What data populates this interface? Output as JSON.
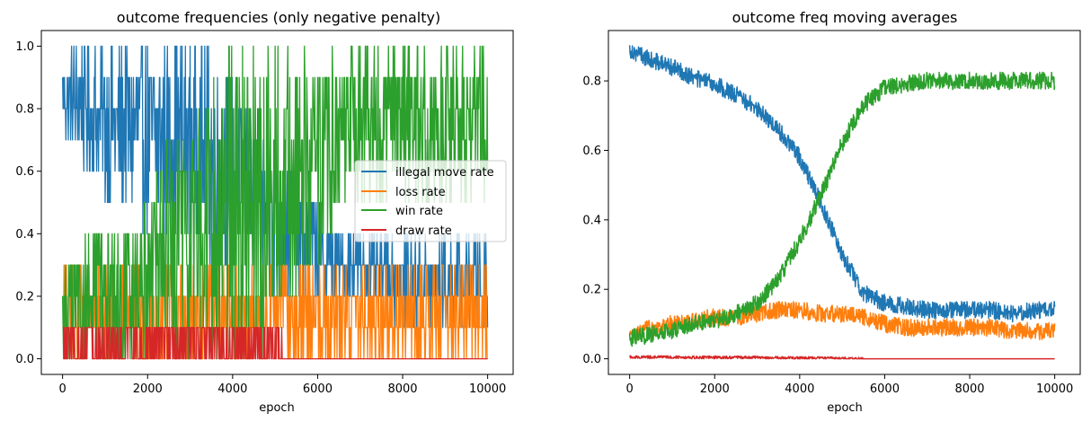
{
  "chart_data": [
    {
      "type": "line",
      "title": "outcome frequencies (only negative penalty)",
      "xlabel": "epoch",
      "ylabel": "",
      "xlim": [
        -500,
        10600
      ],
      "ylim": [
        -0.05,
        1.05
      ],
      "xticks": [
        0,
        2000,
        4000,
        6000,
        8000,
        10000
      ],
      "xtick_labels": [
        "0",
        "2000",
        "4000",
        "6000",
        "8000",
        "10000"
      ],
      "yticks": [
        0.0,
        0.2,
        0.4,
        0.6,
        0.8,
        1.0
      ],
      "ytick_labels": [
        "0.0",
        "0.2",
        "0.4",
        "0.6",
        "0.8",
        "1.0"
      ],
      "grid": false,
      "legend_position": "center-right",
      "x": [
        0,
        500,
        1000,
        1500,
        2000,
        2500,
        3000,
        3500,
        4000,
        4500,
        5000,
        5500,
        6000,
        6500,
        7000,
        7500,
        8000,
        8500,
        9000,
        9500,
        10000
      ],
      "series": [
        {
          "name": "illegal move rate",
          "color": "#1f77b4",
          "low": [
            0.7,
            0.6,
            0.5,
            0.5,
            0.4,
            0.4,
            0.4,
            0.3,
            0.3,
            0.3,
            0.2,
            0.2,
            0.2,
            0.2,
            0.2,
            0.2,
            0.1,
            0.1,
            0.1,
            0.1,
            0.1
          ],
          "high": [
            1.0,
            1.0,
            1.0,
            1.0,
            1.0,
            1.0,
            1.0,
            1.0,
            0.9,
            0.8,
            0.7,
            0.6,
            0.5,
            0.4,
            0.4,
            0.4,
            0.4,
            0.4,
            0.4,
            0.4,
            0.4
          ]
        },
        {
          "name": "loss rate",
          "color": "#ff7f0e",
          "low": [
            0.0,
            0.0,
            0.0,
            0.0,
            0.0,
            0.0,
            0.0,
            0.0,
            0.0,
            0.0,
            0.0,
            0.0,
            0.0,
            0.0,
            0.0,
            0.0,
            0.0,
            0.0,
            0.0,
            0.0,
            0.0
          ],
          "high": [
            0.3,
            0.3,
            0.3,
            0.3,
            0.3,
            0.3,
            0.3,
            0.3,
            0.3,
            0.3,
            0.3,
            0.3,
            0.3,
            0.3,
            0.3,
            0.3,
            0.3,
            0.3,
            0.3,
            0.3,
            0.3
          ]
        },
        {
          "name": "win rate",
          "color": "#2ca02c",
          "low": [
            0.0,
            0.0,
            0.0,
            0.0,
            0.0,
            0.0,
            0.0,
            0.0,
            0.0,
            0.0,
            0.1,
            0.2,
            0.3,
            0.4,
            0.5,
            0.5,
            0.5,
            0.5,
            0.5,
            0.5,
            0.5
          ],
          "high": [
            0.3,
            0.4,
            0.4,
            0.4,
            0.6,
            0.7,
            0.8,
            0.9,
            1.0,
            1.0,
            1.0,
            1.0,
            1.0,
            1.0,
            1.0,
            1.0,
            1.0,
            1.0,
            1.0,
            1.0,
            1.0
          ]
        },
        {
          "name": "draw rate",
          "color": "#d62728",
          "low": [
            0.0,
            0.0,
            0.0,
            0.0,
            0.0,
            0.0,
            0.0,
            0.0,
            0.0,
            0.0,
            0.0,
            0.0,
            0.0,
            0.0,
            0.0,
            0.0,
            0.0,
            0.0,
            0.0,
            0.0,
            0.0
          ],
          "high": [
            0.1,
            0.1,
            0.1,
            0.1,
            0.1,
            0.1,
            0.1,
            0.1,
            0.1,
            0.1,
            0.1,
            0.0,
            0.0,
            0.0,
            0.0,
            0.0,
            0.0,
            0.0,
            0.0,
            0.0,
            0.0
          ]
        }
      ]
    },
    {
      "type": "line",
      "title": "outcome freq moving averages",
      "xlabel": "epoch",
      "ylabel": "",
      "xlim": [
        -500,
        10600
      ],
      "ylim": [
        -0.045,
        0.945
      ],
      "xticks": [
        0,
        2000,
        4000,
        6000,
        8000,
        10000
      ],
      "xtick_labels": [
        "0",
        "2000",
        "4000",
        "6000",
        "8000",
        "10000"
      ],
      "yticks": [
        0.0,
        0.2,
        0.4,
        0.6,
        0.8
      ],
      "ytick_labels": [
        "0.0",
        "0.2",
        "0.4",
        "0.6",
        "0.8"
      ],
      "grid": false,
      "x": [
        0,
        500,
        1000,
        1500,
        2000,
        2500,
        3000,
        3500,
        4000,
        4500,
        5000,
        5500,
        6000,
        6500,
        7000,
        7500,
        8000,
        8500,
        9000,
        9500,
        10000
      ],
      "series": [
        {
          "color": "#1f77b4",
          "values": [
            0.89,
            0.86,
            0.84,
            0.81,
            0.79,
            0.76,
            0.72,
            0.66,
            0.58,
            0.45,
            0.3,
            0.19,
            0.16,
            0.15,
            0.14,
            0.14,
            0.14,
            0.14,
            0.13,
            0.14,
            0.14
          ]
        },
        {
          "color": "#ff7f0e",
          "values": [
            0.06,
            0.09,
            0.1,
            0.11,
            0.12,
            0.12,
            0.13,
            0.14,
            0.14,
            0.13,
            0.13,
            0.12,
            0.1,
            0.09,
            0.09,
            0.09,
            0.09,
            0.09,
            0.08,
            0.08,
            0.08
          ]
        },
        {
          "color": "#2ca02c",
          "values": [
            0.06,
            0.07,
            0.08,
            0.1,
            0.11,
            0.13,
            0.16,
            0.23,
            0.34,
            0.47,
            0.62,
            0.73,
            0.78,
            0.79,
            0.8,
            0.8,
            0.8,
            0.8,
            0.8,
            0.8,
            0.8
          ]
        },
        {
          "color": "#d62728",
          "values": [
            0.005,
            0.005,
            0.005,
            0.004,
            0.004,
            0.004,
            0.004,
            0.003,
            0.002,
            0.002,
            0.001,
            0.0,
            0.0,
            0.0,
            0.0,
            0.0,
            0.0,
            0.0,
            0.0,
            0.0,
            0.0
          ]
        }
      ]
    }
  ]
}
